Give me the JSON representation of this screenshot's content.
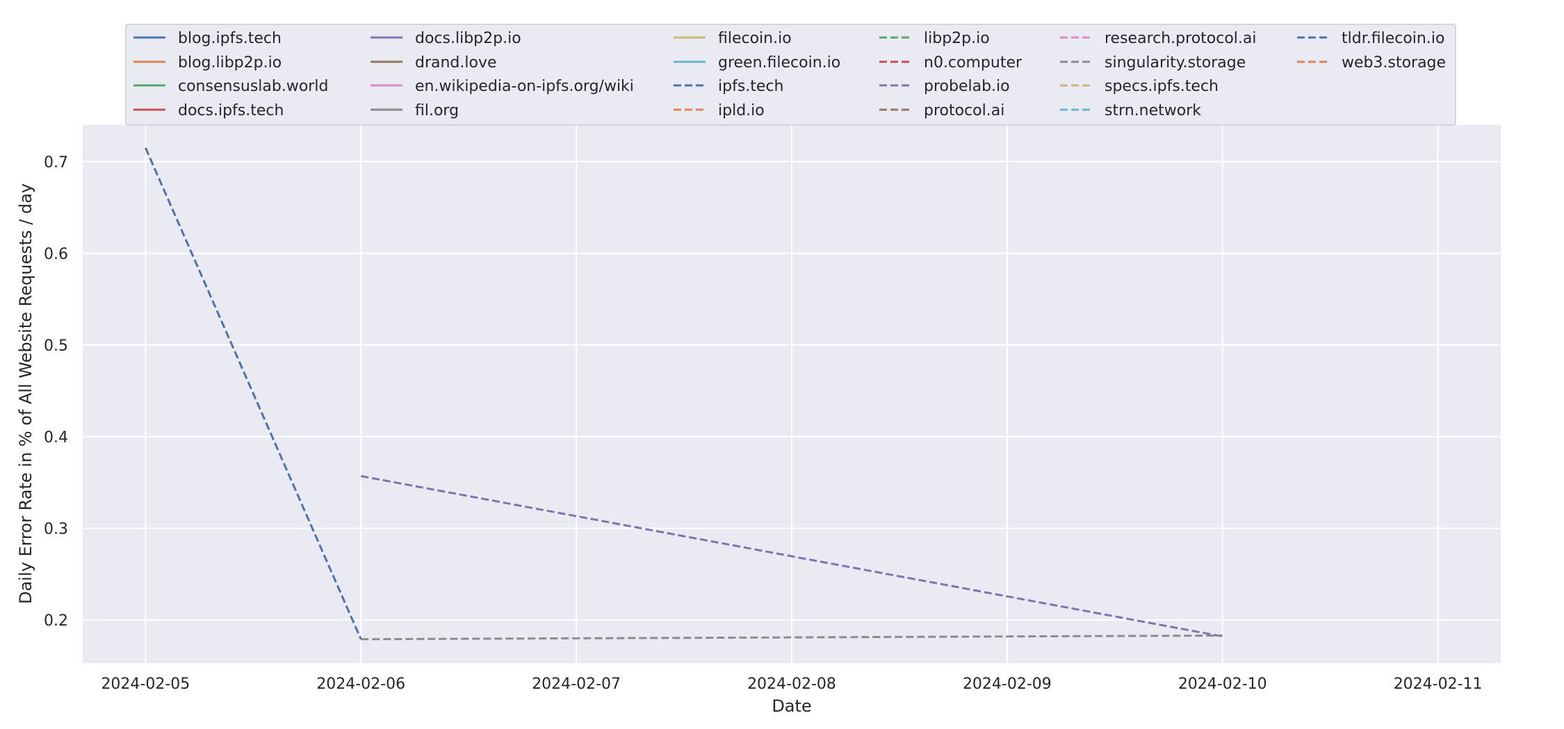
{
  "chart_data": {
    "type": "line",
    "xlabel": "Date",
    "ylabel": "Daily Error Rate in % of All Website Requests / day",
    "x_ticks": [
      "2024-02-05",
      "2024-02-06",
      "2024-02-07",
      "2024-02-08",
      "2024-02-09",
      "2024-02-10",
      "2024-02-11"
    ],
    "y_ticks": [
      0.2,
      0.3,
      0.4,
      0.5,
      0.6,
      0.7
    ],
    "xlim": [
      "2024-02-04T17:00",
      "2024-02-11T07:00"
    ],
    "ylim": [
      0.153,
      0.74
    ],
    "grid": true,
    "legend_position": "top",
    "background": "#eaeaf2",
    "series": [
      {
        "name": "blog.ipfs.tech",
        "color": "#4c72b0",
        "dash": "solid",
        "points": []
      },
      {
        "name": "blog.libp2p.io",
        "color": "#dd8452",
        "dash": "solid",
        "points": []
      },
      {
        "name": "consensuslab.world",
        "color": "#55a868",
        "dash": "solid",
        "points": []
      },
      {
        "name": "docs.ipfs.tech",
        "color": "#c44e52",
        "dash": "solid",
        "points": []
      },
      {
        "name": "docs.libp2p.io",
        "color": "#8172b3",
        "dash": "solid",
        "points": []
      },
      {
        "name": "drand.love",
        "color": "#937860",
        "dash": "solid",
        "points": []
      },
      {
        "name": "en.wikipedia-on-ipfs.org/wiki",
        "color": "#da8bc3",
        "dash": "solid",
        "points": []
      },
      {
        "name": "fil.org",
        "color": "#8c8c8c",
        "dash": "solid",
        "points": []
      },
      {
        "name": "filecoin.io",
        "color": "#ccb974",
        "dash": "solid",
        "points": []
      },
      {
        "name": "green.filecoin.io",
        "color": "#64b5cd",
        "dash": "solid",
        "points": []
      },
      {
        "name": "ipfs.tech",
        "color": "#4c72b0",
        "dash": "dashed",
        "points": [
          {
            "x": "2024-02-05",
            "y": 0.715
          },
          {
            "x": "2024-02-06",
            "y": 0.179
          }
        ]
      },
      {
        "name": "ipld.io",
        "color": "#dd8452",
        "dash": "dashed",
        "points": []
      },
      {
        "name": "libp2p.io",
        "color": "#55a868",
        "dash": "dashed",
        "points": []
      },
      {
        "name": "n0.computer",
        "color": "#c44e52",
        "dash": "dashed",
        "points": []
      },
      {
        "name": "probelab.io",
        "color": "#8172b3",
        "dash": "dashed",
        "points": [
          {
            "x": "2024-02-06",
            "y": 0.357
          },
          {
            "x": "2024-02-10",
            "y": 0.182
          }
        ]
      },
      {
        "name": "protocol.ai",
        "color": "#937860",
        "dash": "dashed",
        "points": []
      },
      {
        "name": "research.protocol.ai",
        "color": "#da8bc3",
        "dash": "dashed",
        "points": []
      },
      {
        "name": "singularity.storage",
        "color": "#8c8c8c",
        "dash": "dashed",
        "points": [
          {
            "x": "2024-02-06",
            "y": 0.179
          },
          {
            "x": "2024-02-10",
            "y": 0.183
          }
        ]
      },
      {
        "name": "specs.ipfs.tech",
        "color": "#ccb974",
        "dash": "dashed",
        "points": []
      },
      {
        "name": "strn.network",
        "color": "#64b5cd",
        "dash": "dashed",
        "points": []
      },
      {
        "name": "tldr.filecoin.io",
        "color": "#4c72b0",
        "dash": "dashed",
        "points": []
      },
      {
        "name": "web3.storage",
        "color": "#dd8452",
        "dash": "dashed",
        "points": []
      }
    ]
  }
}
